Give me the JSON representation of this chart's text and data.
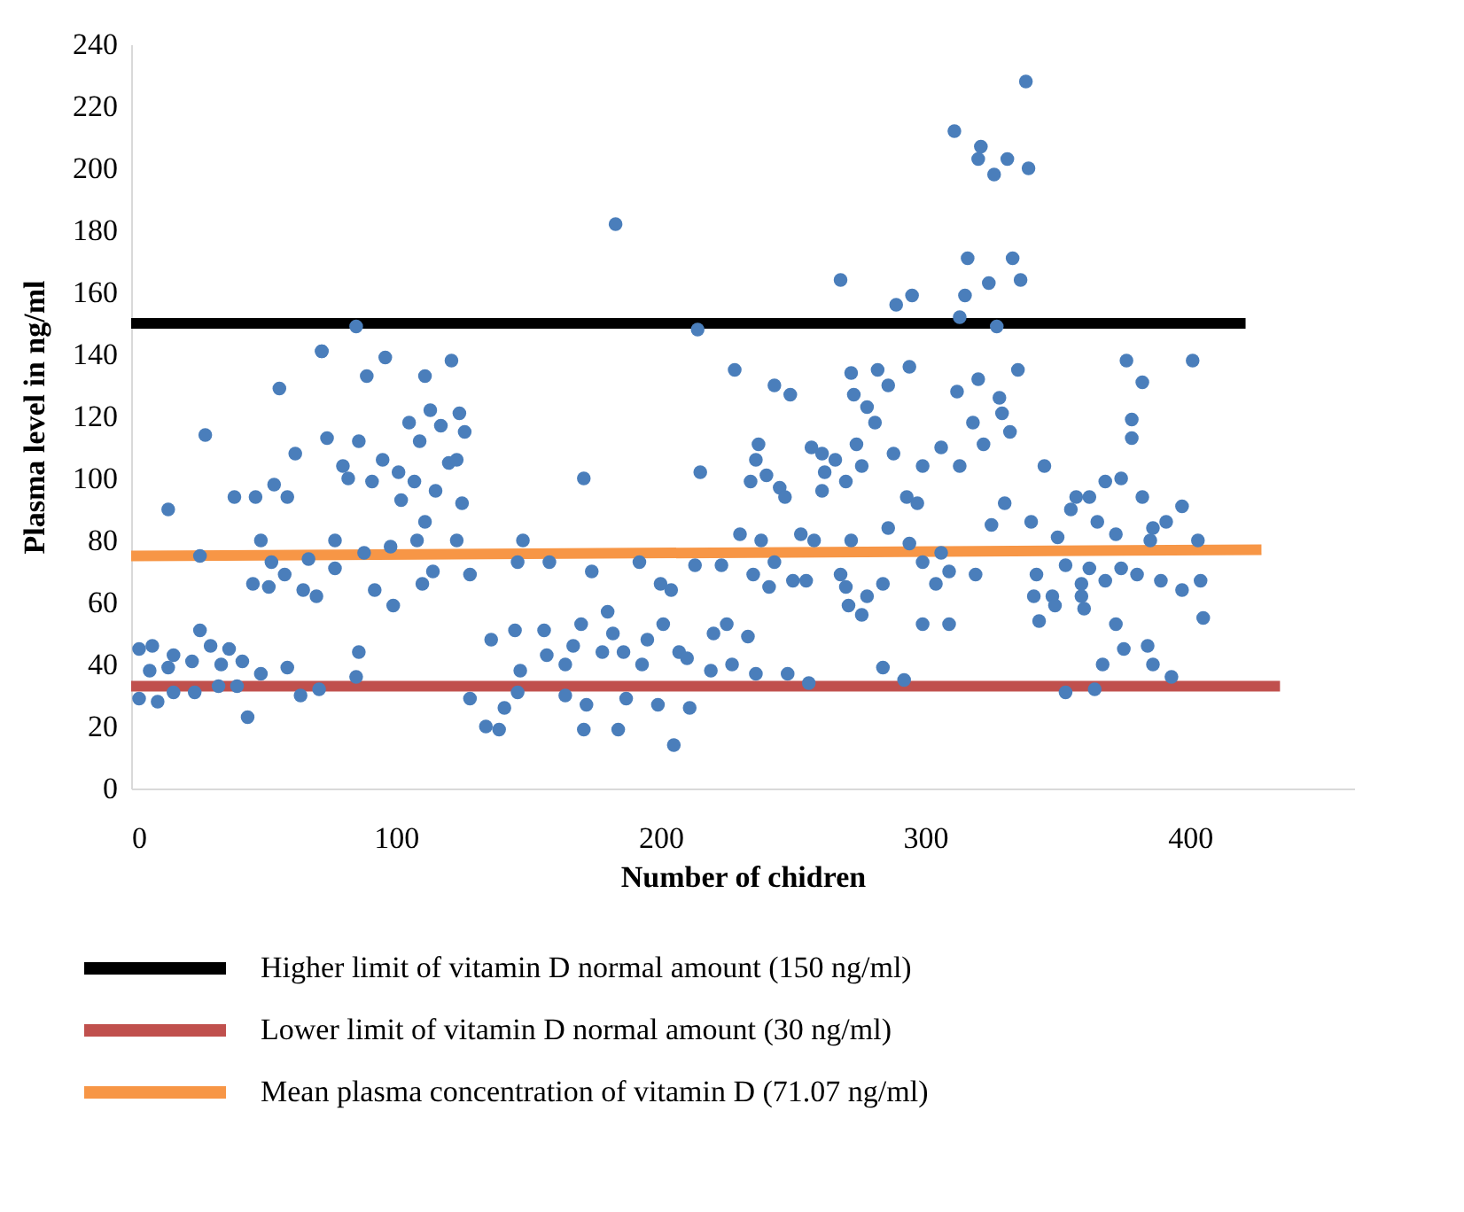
{
  "chart_data": {
    "type": "scatter",
    "xlabel": "Number of chidren",
    "ylabel": "Plasma level in ng/ml",
    "xlim": [
      0,
      462
    ],
    "xticks": [
      0,
      100,
      200,
      300,
      400
    ],
    "ylim": [
      0,
      240
    ],
    "yticks": [
      0,
      20,
      40,
      60,
      80,
      100,
      120,
      140,
      160,
      180,
      200,
      220,
      240
    ],
    "grid": false,
    "legend": "bottom",
    "marker": "circle",
    "series": [
      {
        "type": "line",
        "marker": "none",
        "name": "Higher limit of vitamin D normal amount (150 ng/ml)",
        "color": "#000000",
        "x": [
          0,
          421
        ],
        "values": [
          150,
          150
        ]
      },
      {
        "type": "line",
        "marker": "none",
        "name": "Lower limit of vitamin D normal amount (30 ng/ml)",
        "color": "#c0504d",
        "x": [
          0,
          434
        ],
        "values": [
          33,
          33
        ]
      },
      {
        "type": "line",
        "marker": "none",
        "name": "Mean plasma concentration of vitamin D (71.07 ng/ml)",
        "color": "#f79646",
        "x": [
          0,
          427
        ],
        "values": [
          75,
          77
        ]
      },
      {
        "color": "#4a7ebb",
        "x": [
          72,
          56,
          28,
          62,
          14,
          39,
          47,
          54,
          59,
          49,
          26,
          53,
          58,
          46,
          52,
          65,
          70,
          67,
          3,
          8,
          16,
          26,
          30,
          37,
          7,
          14,
          23,
          34,
          42,
          49,
          59,
          3,
          10,
          16,
          24,
          33,
          40,
          44,
          64,
          71,
          85,
          72,
          96,
          89,
          111,
          121,
          74,
          86,
          105,
          109,
          113,
          117,
          124,
          126,
          80,
          82,
          91,
          95,
          101,
          107,
          102,
          115,
          120,
          123,
          125,
          111,
          77,
          88,
          98,
          108,
          123,
          114,
          110,
          92,
          99,
          77,
          128,
          86,
          85,
          136,
          145,
          128,
          134,
          139,
          141,
          146,
          183,
          171,
          148,
          146,
          158,
          192,
          174,
          200,
          204,
          180,
          156,
          170,
          182,
          195,
          201,
          157,
          167,
          178,
          186,
          207,
          147,
          164,
          193,
          210,
          164,
          172,
          187,
          199,
          211,
          171,
          184,
          205,
          268,
          214,
          228,
          243,
          249,
          272,
          273,
          278,
          281,
          237,
          236,
          234,
          240,
          245,
          247,
          257,
          261,
          266,
          262,
          261,
          270,
          274,
          276,
          215,
          230,
          238,
          253,
          258,
          272,
          213,
          223,
          235,
          243,
          241,
          250,
          255,
          268,
          270,
          271,
          276,
          278,
          220,
          225,
          233,
          219,
          227,
          236,
          248,
          256,
          338,
          311,
          321,
          320,
          331,
          339,
          326,
          316,
          333,
          336,
          324,
          315,
          295,
          289,
          313,
          327,
          282,
          294,
          286,
          320,
          335,
          312,
          328,
          376,
          382,
          401,
          318,
          329,
          332,
          378,
          378,
          322,
          288,
          306,
          299,
          313,
          345,
          374,
          368,
          293,
          297,
          330,
          382,
          357,
          362,
          397,
          355,
          325,
          340,
          286,
          365,
          391,
          386,
          403,
          294,
          306,
          350,
          372,
          385,
          299,
          309,
          319,
          342,
          353,
          362,
          374,
          380,
          304,
          284,
          359,
          368,
          389,
          397,
          404,
          341,
          348,
          359,
          360,
          349,
          343,
          405,
          299,
          309,
          372,
          375,
          384,
          367,
          386,
          393,
          284,
          292,
          353,
          364
        ],
        "values": [
          141,
          129,
          114,
          108,
          90,
          94,
          94,
          98,
          94,
          80,
          75,
          73,
          69,
          66,
          65,
          64,
          62,
          74,
          45,
          46,
          43,
          51,
          46,
          45,
          38,
          39,
          41,
          40,
          41,
          37,
          39,
          29,
          28,
          31,
          31,
          33,
          33,
          23,
          30,
          32,
          149,
          141,
          139,
          133,
          133,
          138,
          113,
          112,
          118,
          112,
          122,
          117,
          121,
          115,
          104,
          100,
          99,
          106,
          102,
          99,
          93,
          96,
          105,
          106,
          92,
          86,
          80,
          76,
          78,
          80,
          80,
          70,
          66,
          64,
          59,
          71,
          69,
          44,
          36,
          48,
          51,
          29,
          20,
          19,
          26,
          31,
          182,
          100,
          80,
          73,
          73,
          73,
          70,
          66,
          64,
          57,
          51,
          53,
          50,
          48,
          53,
          43,
          46,
          44,
          44,
          44,
          38,
          40,
          40,
          42,
          30,
          27,
          29,
          27,
          26,
          19,
          19,
          14,
          164,
          148,
          135,
          130,
          127,
          134,
          127,
          123,
          118,
          111,
          106,
          99,
          101,
          97,
          94,
          110,
          108,
          106,
          102,
          96,
          99,
          111,
          104,
          102,
          82,
          80,
          82,
          80,
          80,
          72,
          72,
          69,
          73,
          65,
          67,
          67,
          69,
          65,
          59,
          56,
          62,
          50,
          53,
          49,
          38,
          40,
          37,
          37,
          34,
          228,
          212,
          207,
          203,
          203,
          200,
          198,
          171,
          171,
          164,
          163,
          159,
          159,
          156,
          152,
          149,
          135,
          136,
          130,
          132,
          135,
          128,
          126,
          138,
          131,
          138,
          118,
          121,
          115,
          119,
          113,
          111,
          108,
          110,
          104,
          104,
          104,
          100,
          99,
          94,
          92,
          92,
          94,
          94,
          94,
          91,
          90,
          85,
          86,
          84,
          86,
          86,
          84,
          80,
          79,
          76,
          81,
          82,
          80,
          73,
          70,
          69,
          69,
          72,
          71,
          71,
          69,
          66,
          66,
          66,
          67,
          67,
          64,
          67,
          62,
          62,
          62,
          58,
          59,
          54,
          55,
          53,
          53,
          53,
          45,
          46,
          40,
          40,
          36,
          39,
          35,
          31,
          32
        ]
      }
    ]
  }
}
